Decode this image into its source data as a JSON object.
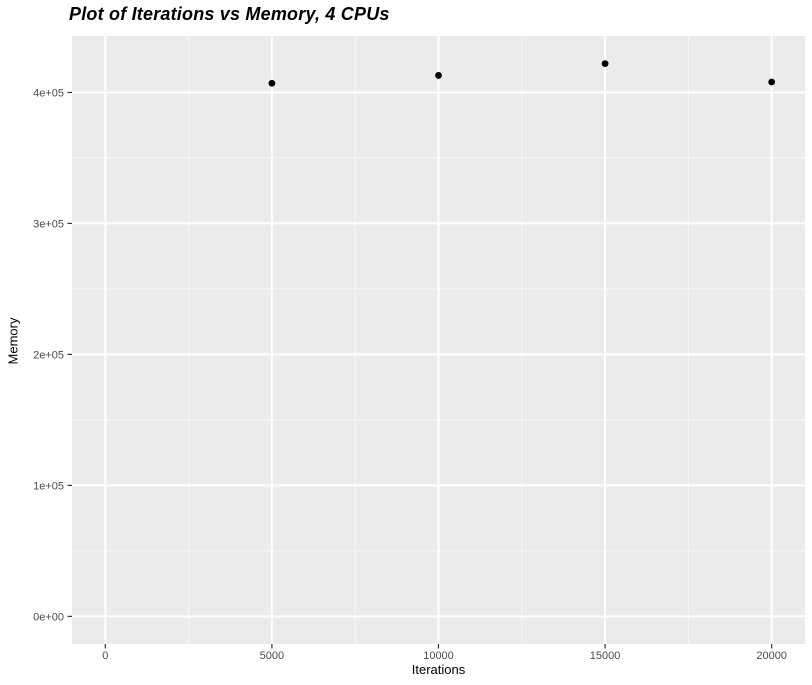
{
  "chart_data": {
    "type": "scatter",
    "title": "Plot of Iterations vs Memory, 4 CPUs",
    "xlabel": "Iterations",
    "ylabel": "Memory",
    "x": [
      5000,
      10000,
      15000,
      20000
    ],
    "y": [
      407000,
      413000,
      422000,
      408000
    ],
    "xlim": [
      -1000,
      21000
    ],
    "ylim": [
      -21100,
      443100
    ],
    "x_ticks": [
      0,
      5000,
      10000,
      15000,
      20000
    ],
    "x_tick_labels": [
      "0",
      "5000",
      "10000",
      "15000",
      "20000"
    ],
    "y_ticks": [
      0,
      100000,
      200000,
      300000,
      400000
    ],
    "y_tick_labels": [
      "0e+00",
      "1e+05",
      "2e+05",
      "3e+05",
      "4e+05"
    ],
    "x_minor_ticks": [
      2500,
      7500,
      12500,
      17500
    ],
    "y_minor_ticks": [
      50000,
      150000,
      250000,
      350000
    ],
    "grid": true,
    "legend": false,
    "style": {
      "panel_bg": "#EBEBEB",
      "grid_major": "#FFFFFF",
      "grid_minor": "#F7F7F7",
      "point_color": "#000000",
      "tick_label_color": "#4D4D4D",
      "axis_title_color": "#000000",
      "tick_mark_color": "#333333"
    }
  }
}
